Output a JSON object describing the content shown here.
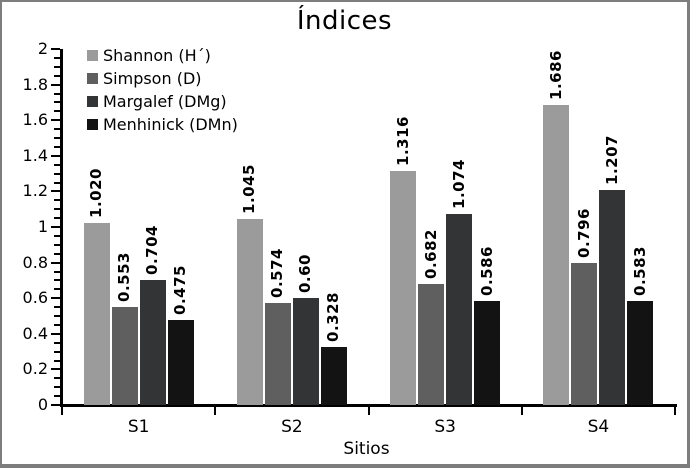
{
  "frame": {
    "background": "#ffffff",
    "border_color": "#7d7d7d"
  },
  "chart_data": {
    "type": "bar",
    "title": "Índices",
    "xlabel": "Sitios",
    "ylabel": "",
    "categories": [
      "S1",
      "S2",
      "S3",
      "S4"
    ],
    "series": [
      {
        "name": "Shannon (H´)",
        "color": "#9b9b9b",
        "values": [
          1.02,
          1.045,
          1.316,
          1.686
        ],
        "value_labels": [
          "1.020",
          "1.045",
          "1.316",
          "1.686"
        ]
      },
      {
        "name": "Simpson (D)",
        "color": "#5f5f5f",
        "values": [
          0.553,
          0.574,
          0.682,
          0.796
        ],
        "value_labels": [
          "0.553",
          "0.574",
          "0.682",
          "0.796"
        ]
      },
      {
        "name": "Margalef (DMg)",
        "color": "#323436",
        "values": [
          0.704,
          0.6,
          1.074,
          1.207
        ],
        "value_labels": [
          "0.704",
          "0.60",
          "1.074",
          "1.207"
        ]
      },
      {
        "name": "Menhinick (DMn)",
        "color": "#131313",
        "values": [
          0.475,
          0.328,
          0.586,
          0.583
        ],
        "value_labels": [
          "0.475",
          "0.328",
          "0.586",
          "0.583"
        ]
      }
    ],
    "ylim": [
      0,
      2
    ],
    "ytick_step": 0.2,
    "minor_tick_step": 0.05,
    "ytick_labels": [
      "0",
      "0.2",
      "0.4",
      "0.6",
      "0.8",
      "1",
      "1.2",
      "1.4",
      "1.6",
      "1.8",
      "2"
    ],
    "legend_position": "top-left",
    "grid": false,
    "axis_color": "#000000",
    "text_color": "#000000"
  }
}
